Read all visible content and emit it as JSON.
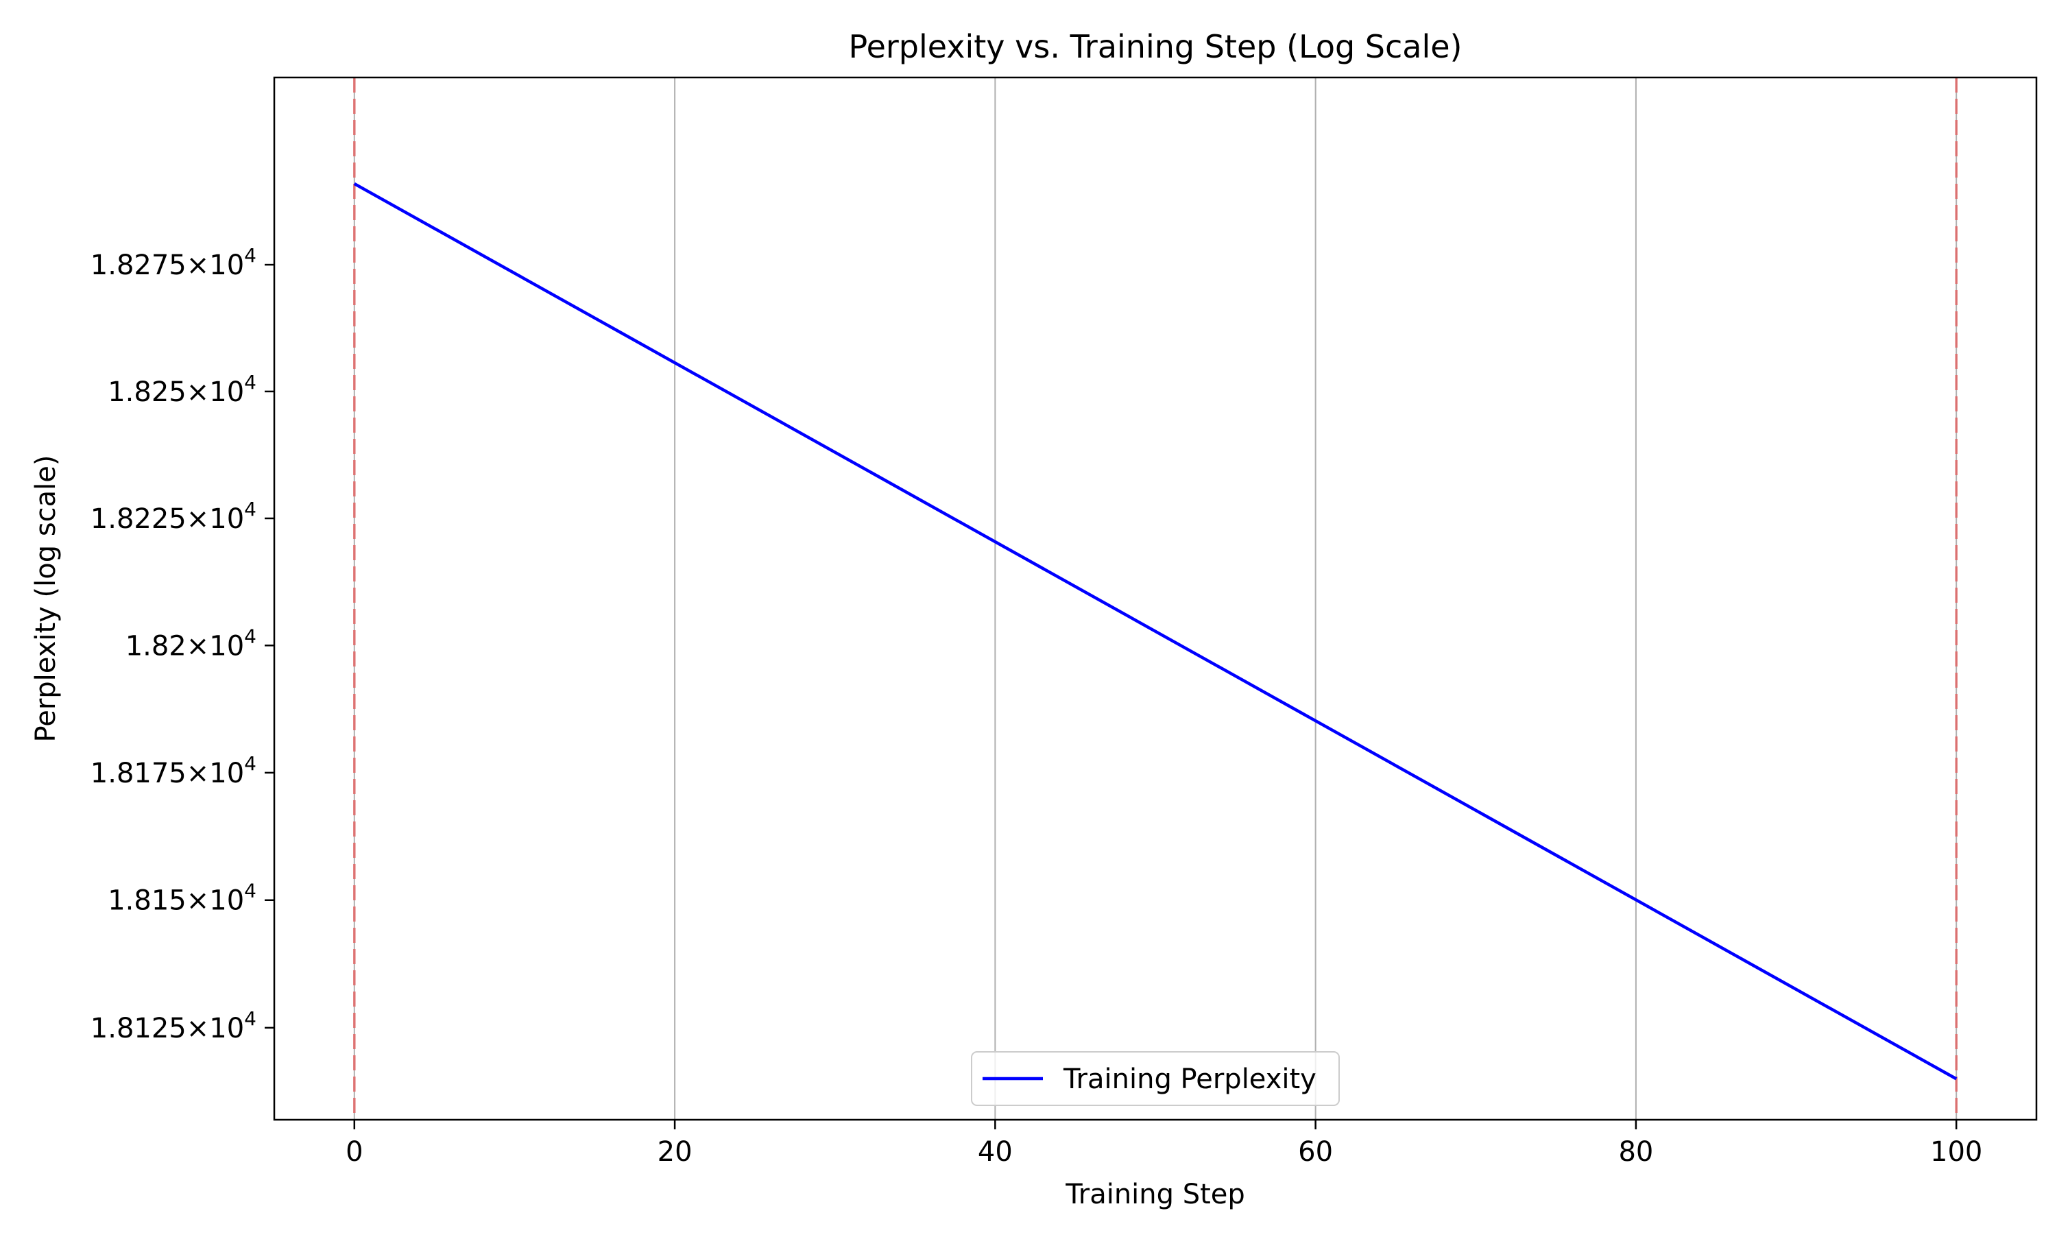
{
  "chart_data": {
    "type": "line",
    "title": "Perplexity vs. Training Step (Log Scale)",
    "xlabel": "Training Step",
    "ylabel": "Perplexity (log scale)",
    "yscale": "log",
    "grid": "x-axis major gridlines on",
    "legend_placement": "lower center",
    "xlim": [
      -5,
      105
    ],
    "ylim": [
      18107,
      18312
    ],
    "x_ticks": [
      {
        "value": 0,
        "label": "0"
      },
      {
        "value": 20,
        "label": "20"
      },
      {
        "value": 40,
        "label": "40"
      },
      {
        "value": 60,
        "label": "60"
      },
      {
        "value": 80,
        "label": "80"
      },
      {
        "value": 100,
        "label": "100"
      }
    ],
    "y_ticks": [
      {
        "value": 18275,
        "mantissa": "1.8275",
        "base": "×10",
        "exponent": "4"
      },
      {
        "value": 18250,
        "mantissa": "1.825",
        "base": "×10",
        "exponent": "4"
      },
      {
        "value": 18225,
        "mantissa": "1.8225",
        "base": "×10",
        "exponent": "4"
      },
      {
        "value": 18200,
        "mantissa": "1.82",
        "base": "×10",
        "exponent": "4"
      },
      {
        "value": 18175,
        "mantissa": "1.8175",
        "base": "×10",
        "exponent": "4"
      },
      {
        "value": 18150,
        "mantissa": "1.815",
        "base": "×10",
        "exponent": "4"
      },
      {
        "value": 18125,
        "mantissa": "1.8125",
        "base": "×10",
        "exponent": "4"
      }
    ],
    "series": [
      {
        "name": "Training Perplexity",
        "color": "#0000ff",
        "x": [
          0,
          100
        ],
        "y": [
          18291,
          18115
        ]
      }
    ],
    "reference_lines": [
      {
        "x": 0,
        "color": "#e06666",
        "style": "dashed"
      },
      {
        "x": 100,
        "color": "#e06666",
        "style": "dashed"
      }
    ],
    "colors": {
      "grid": "#b0b0b0",
      "axes": "#000000",
      "legend_border": "#cccccc"
    }
  }
}
